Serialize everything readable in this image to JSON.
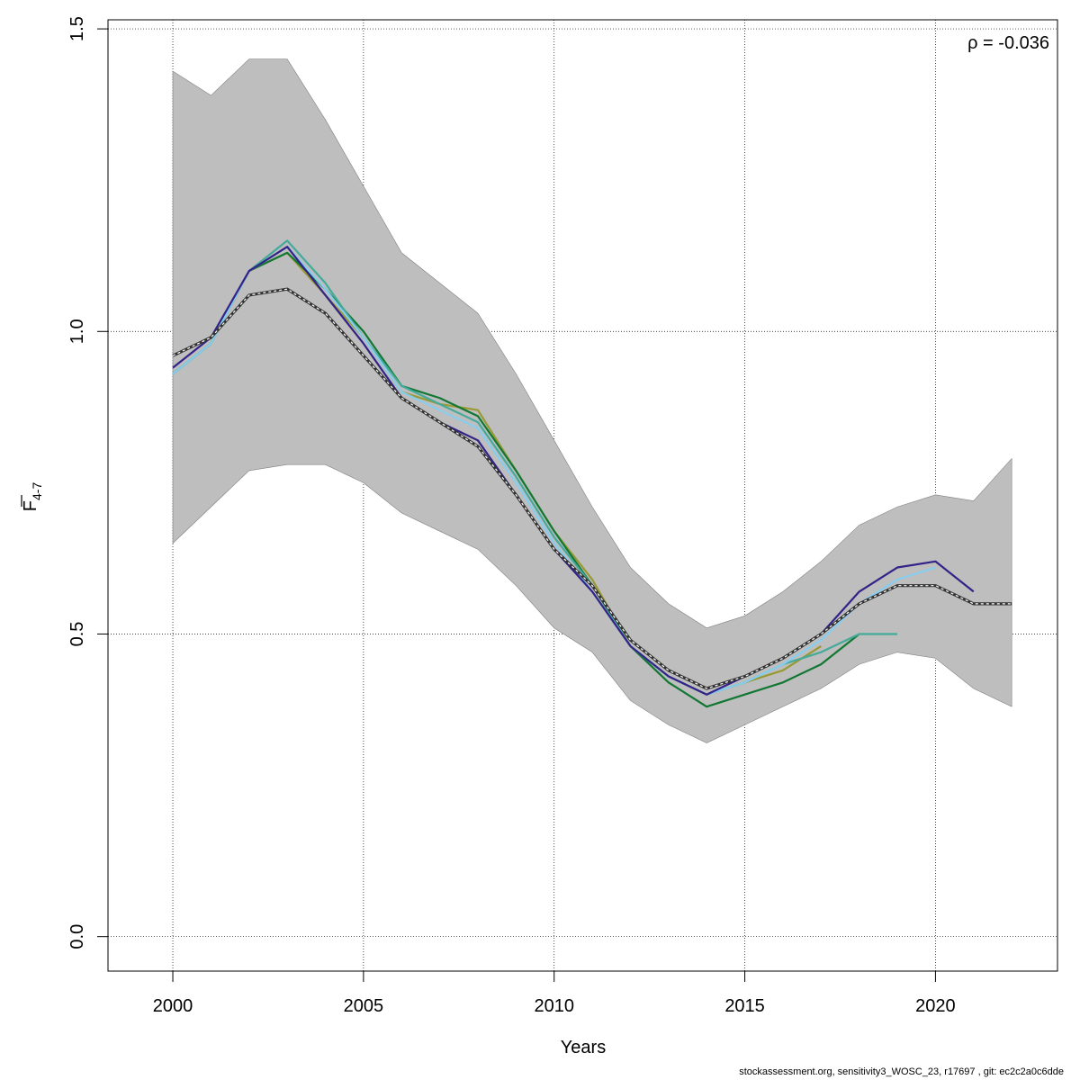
{
  "chart_data": {
    "type": "line",
    "xlabel": "Years",
    "ylabel_main": "F",
    "ylabel_sub": "4-7",
    "annotation": "ρ = -0.036",
    "xlim": [
      1998.3,
      2023.2
    ],
    "ylim": [
      -0.057,
      1.515
    ],
    "x_ticks": [
      2000,
      2005,
      2010,
      2015,
      2020
    ],
    "y_ticks": [
      0.0,
      0.5,
      1.0,
      1.5
    ],
    "y_tick_labels": [
      "0.0",
      "0.5",
      "1.0",
      "1.5"
    ],
    "grid": true,
    "confidence_band": {
      "color": "#bebebe",
      "x": [
        2000,
        2001,
        2002,
        2003,
        2004,
        2005,
        2006,
        2007,
        2008,
        2009,
        2010,
        2011,
        2012,
        2013,
        2014,
        2015,
        2016,
        2017,
        2018,
        2019,
        2020,
        2021,
        2022
      ],
      "upper": [
        1.43,
        1.39,
        1.45,
        1.45,
        1.35,
        1.24,
        1.13,
        1.08,
        1.03,
        0.93,
        0.82,
        0.71,
        0.61,
        0.55,
        0.51,
        0.53,
        0.57,
        0.62,
        0.68,
        0.71,
        0.73,
        0.72,
        0.79
      ],
      "lower": [
        0.65,
        0.71,
        0.77,
        0.78,
        0.78,
        0.75,
        0.7,
        0.67,
        0.64,
        0.58,
        0.51,
        0.47,
        0.39,
        0.35,
        0.32,
        0.35,
        0.38,
        0.41,
        0.45,
        0.47,
        0.46,
        0.41,
        0.38
      ]
    },
    "series": [
      {
        "color": "#000000",
        "dashed": true,
        "x": [
          2000,
          2001,
          2002,
          2003,
          2004,
          2005,
          2006,
          2007,
          2008,
          2009,
          2010,
          2011,
          2012,
          2013,
          2014,
          2015,
          2016,
          2017,
          2018,
          2019,
          2020,
          2021,
          2022
        ],
        "values": [
          0.96,
          0.99,
          1.06,
          1.07,
          1.03,
          0.96,
          0.89,
          0.85,
          0.81,
          0.73,
          0.64,
          0.58,
          0.49,
          0.44,
          0.41,
          0.43,
          0.46,
          0.5,
          0.55,
          0.58,
          0.58,
          0.55,
          0.55
        ]
      },
      {
        "color": "#332288",
        "dashed": false,
        "x": [
          2000,
          2001,
          2002,
          2003,
          2004,
          2005,
          2006,
          2007,
          2008,
          2009,
          2010,
          2011,
          2012,
          2013,
          2014,
          2015,
          2016,
          2017,
          2018,
          2019,
          2020,
          2021
        ],
        "values": [
          0.94,
          0.99,
          1.1,
          1.14,
          1.06,
          0.98,
          0.89,
          0.85,
          0.82,
          0.73,
          0.64,
          0.57,
          0.48,
          0.43,
          0.4,
          0.43,
          0.46,
          0.5,
          0.57,
          0.61,
          0.62,
          0.57
        ]
      },
      {
        "color": "#88ccee",
        "dashed": false,
        "x": [
          2000,
          2001,
          2002,
          2003,
          2004,
          2005,
          2006,
          2007,
          2008,
          2009,
          2010,
          2011,
          2012,
          2013,
          2014,
          2015,
          2016,
          2017,
          2018,
          2019,
          2020
        ],
        "values": [
          0.93,
          0.98,
          1.1,
          1.14,
          1.07,
          0.99,
          0.9,
          0.87,
          0.84,
          0.75,
          0.65,
          0.57,
          0.48,
          0.43,
          0.4,
          0.42,
          0.45,
          0.49,
          0.55,
          0.59,
          0.61
        ]
      },
      {
        "color": "#44aa99",
        "dashed": false,
        "x": [
          2000,
          2001,
          2002,
          2003,
          2004,
          2005,
          2006,
          2007,
          2008,
          2009,
          2010,
          2011,
          2012,
          2013,
          2014,
          2015,
          2016,
          2017,
          2018,
          2019
        ],
        "values": [
          0.93,
          0.98,
          1.1,
          1.15,
          1.08,
          0.99,
          0.91,
          0.88,
          0.85,
          0.76,
          0.66,
          0.58,
          0.48,
          0.43,
          0.4,
          0.42,
          0.45,
          0.47,
          0.5,
          0.5
        ]
      },
      {
        "color": "#117733",
        "dashed": false,
        "x": [
          2000,
          2001,
          2002,
          2003,
          2004,
          2005,
          2006,
          2007,
          2008,
          2009,
          2010,
          2011,
          2012,
          2013,
          2014,
          2015,
          2016,
          2017,
          2018
        ],
        "values": [
          0.93,
          0.98,
          1.1,
          1.13,
          1.07,
          1.0,
          0.91,
          0.89,
          0.86,
          0.77,
          0.67,
          0.58,
          0.48,
          0.42,
          0.38,
          0.4,
          0.42,
          0.45,
          0.5
        ]
      },
      {
        "color": "#999933",
        "dashed": false,
        "x": [
          2000,
          2001,
          2002,
          2003,
          2004,
          2005,
          2006,
          2007,
          2008,
          2009,
          2010,
          2011,
          2012,
          2013,
          2014,
          2015,
          2016,
          2017
        ],
        "values": [
          0.93,
          0.98,
          1.1,
          1.13,
          1.06,
          0.99,
          0.9,
          0.88,
          0.87,
          0.77,
          0.67,
          0.59,
          0.48,
          0.43,
          0.4,
          0.42,
          0.44,
          0.48
        ]
      }
    ]
  },
  "footer": "stockassessment.org, sensitivity3_WOSC_23, r17697 , git: ec2c2a0c6dde"
}
